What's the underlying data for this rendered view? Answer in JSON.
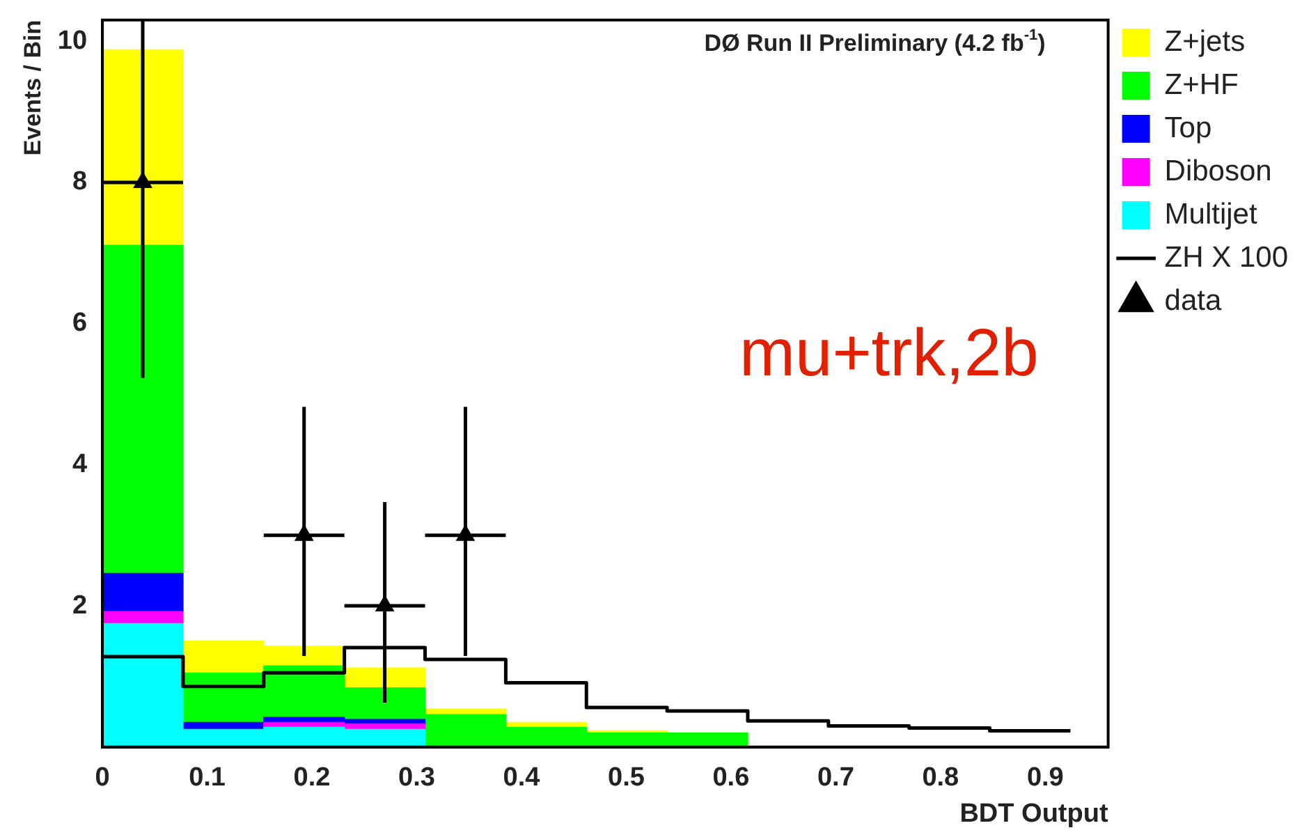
{
  "chart_data": {
    "type": "bar",
    "xlabel": "BDT Output",
    "ylabel": "Events / Bin",
    "annotations": [
      "DØ Run II Preliminary (4.2 fb$^{-1}$)",
      "mu+trk,2b"
    ],
    "x": [
      0.0385,
      0.1155,
      0.1925,
      0.2695,
      0.3465,
      0.4235,
      0.5005,
      0.5775
    ],
    "stacked": true,
    "series": [
      {
        "name": "Multijet",
        "color": "#00ffff",
        "values": [
          1.75,
          0.25,
          0.28,
          0.25,
          null,
          null,
          null,
          null
        ]
      },
      {
        "name": "Diboson",
        "color": "#ff00ff",
        "values": [
          0.17,
          null,
          0.07,
          0.08,
          null,
          null,
          null,
          null
        ]
      },
      {
        "name": "Top",
        "color": "#0000ff",
        "values": [
          0.54,
          0.1,
          0.07,
          0.06,
          null,
          null,
          null,
          null
        ]
      },
      {
        "name": "Z+HF",
        "color": "#00ff00",
        "values": [
          4.65,
          0.7,
          0.73,
          0.45,
          0.46,
          0.28,
          0.2,
          0.2
        ]
      },
      {
        "name": "Z+jets",
        "color": "#ffff00",
        "values": [
          2.77,
          0.45,
          0.28,
          0.28,
          0.08,
          0.07,
          0.03,
          null
        ]
      },
      {
        "name": "ZH X 100",
        "type": "line",
        "color": "#000000",
        "x": [
          0,
          0.077,
          0.077,
          0.154,
          0.154,
          0.231,
          0.231,
          0.308,
          0.308,
          0.385,
          0.385,
          0.462,
          0.462,
          0.539,
          0.539,
          0.616,
          0.616,
          0.693,
          0.693,
          0.77,
          0.77,
          0.847,
          0.847,
          0.924
        ],
        "values": [
          1.28,
          1.28,
          0.86,
          0.86,
          1.05,
          1.05,
          1.41,
          1.41,
          1.24,
          1.24,
          0.91,
          0.91,
          0.56,
          0.56,
          0.51,
          0.51,
          0.37,
          0.37,
          0.3,
          0.3,
          0.27,
          0.27,
          0.23,
          0.23
        ]
      },
      {
        "name": "data",
        "type": "scatter",
        "color": "#000000",
        "marker": "triangle",
        "x": [
          0.0385,
          0.1925,
          0.2695,
          0.3465
        ],
        "values": [
          8,
          3,
          2,
          3
        ],
        "errors": [
          [
            5.23,
            10.3
          ],
          [
            1.29,
            4.82
          ],
          [
            0.63,
            3.47
          ],
          [
            1.29,
            4.82
          ]
        ],
        "xerrors": [
          0.0385,
          0.0385,
          0.0385,
          0.0385
        ]
      }
    ],
    "xlim": [
      0,
      0.96
    ],
    "xticks": [
      0,
      0.1,
      0.2,
      0.3,
      0.4,
      0.5,
      0.6,
      0.7,
      0.8,
      0.9
    ],
    "ylim": [
      0,
      10.3
    ],
    "yticks": [
      2,
      4,
      6,
      8,
      10
    ],
    "legend": "right",
    "grid": false
  }
}
